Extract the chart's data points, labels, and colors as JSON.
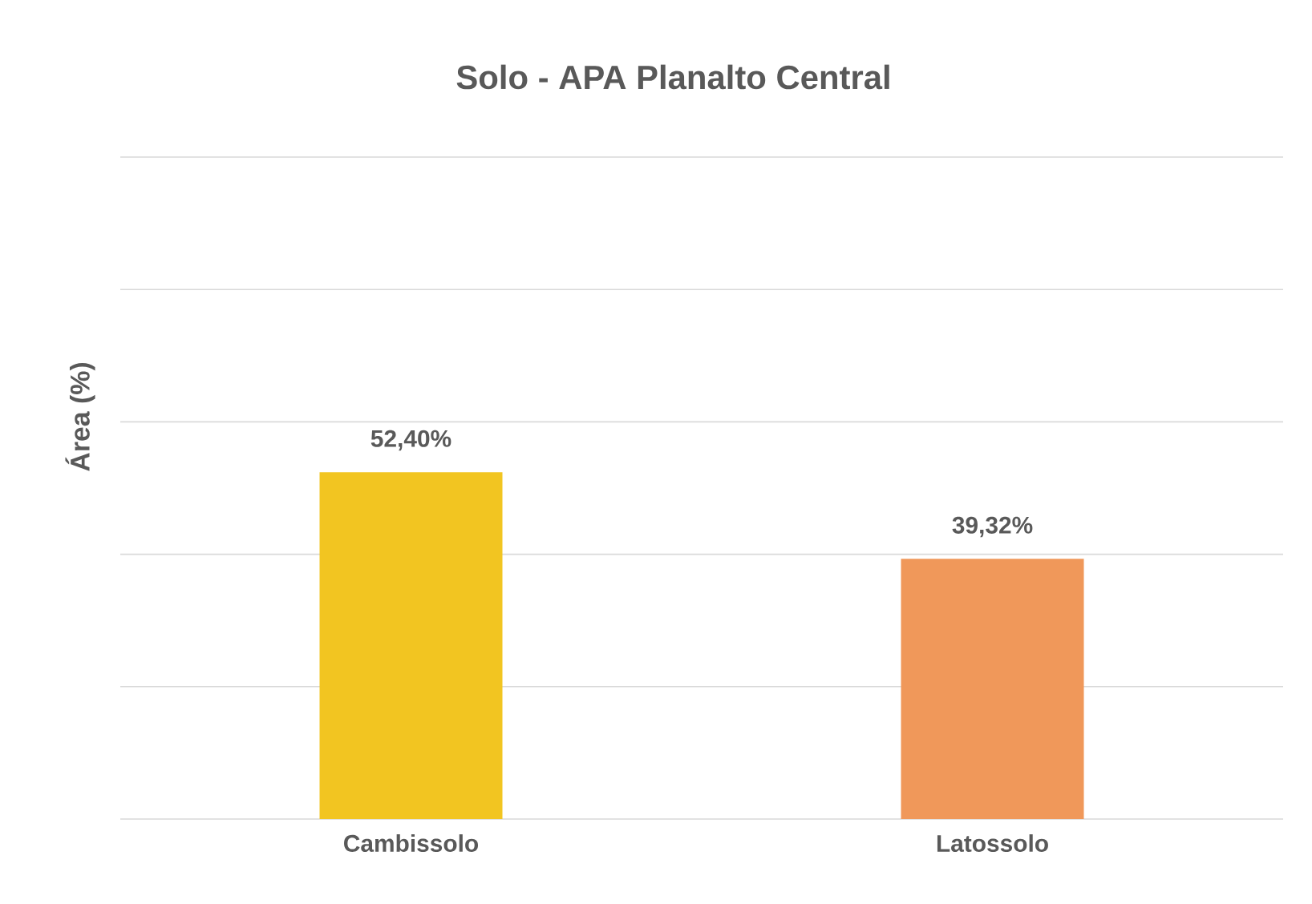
{
  "chart_data": {
    "type": "bar",
    "title": "Solo - APA Planalto Central",
    "ylabel": "Área (%)",
    "categories": [
      "Cambissolo",
      "Latossolo"
    ],
    "values": [
      52.4,
      39.32
    ],
    "colors": [
      "#f2c521",
      "#f0985a"
    ],
    "value_labels": [
      "52,40%",
      "39,32%"
    ],
    "ylim": [
      0,
      100
    ],
    "yticks": [
      {
        "value": 0,
        "label": null
      },
      {
        "value": 20,
        "label": null
      },
      {
        "value": 40,
        "label": null
      },
      {
        "value": 60,
        "label": null
      },
      {
        "value": 80,
        "label": null
      },
      {
        "value": 100,
        "label": null
      }
    ],
    "grid": "y",
    "tick_labels": "x"
  }
}
